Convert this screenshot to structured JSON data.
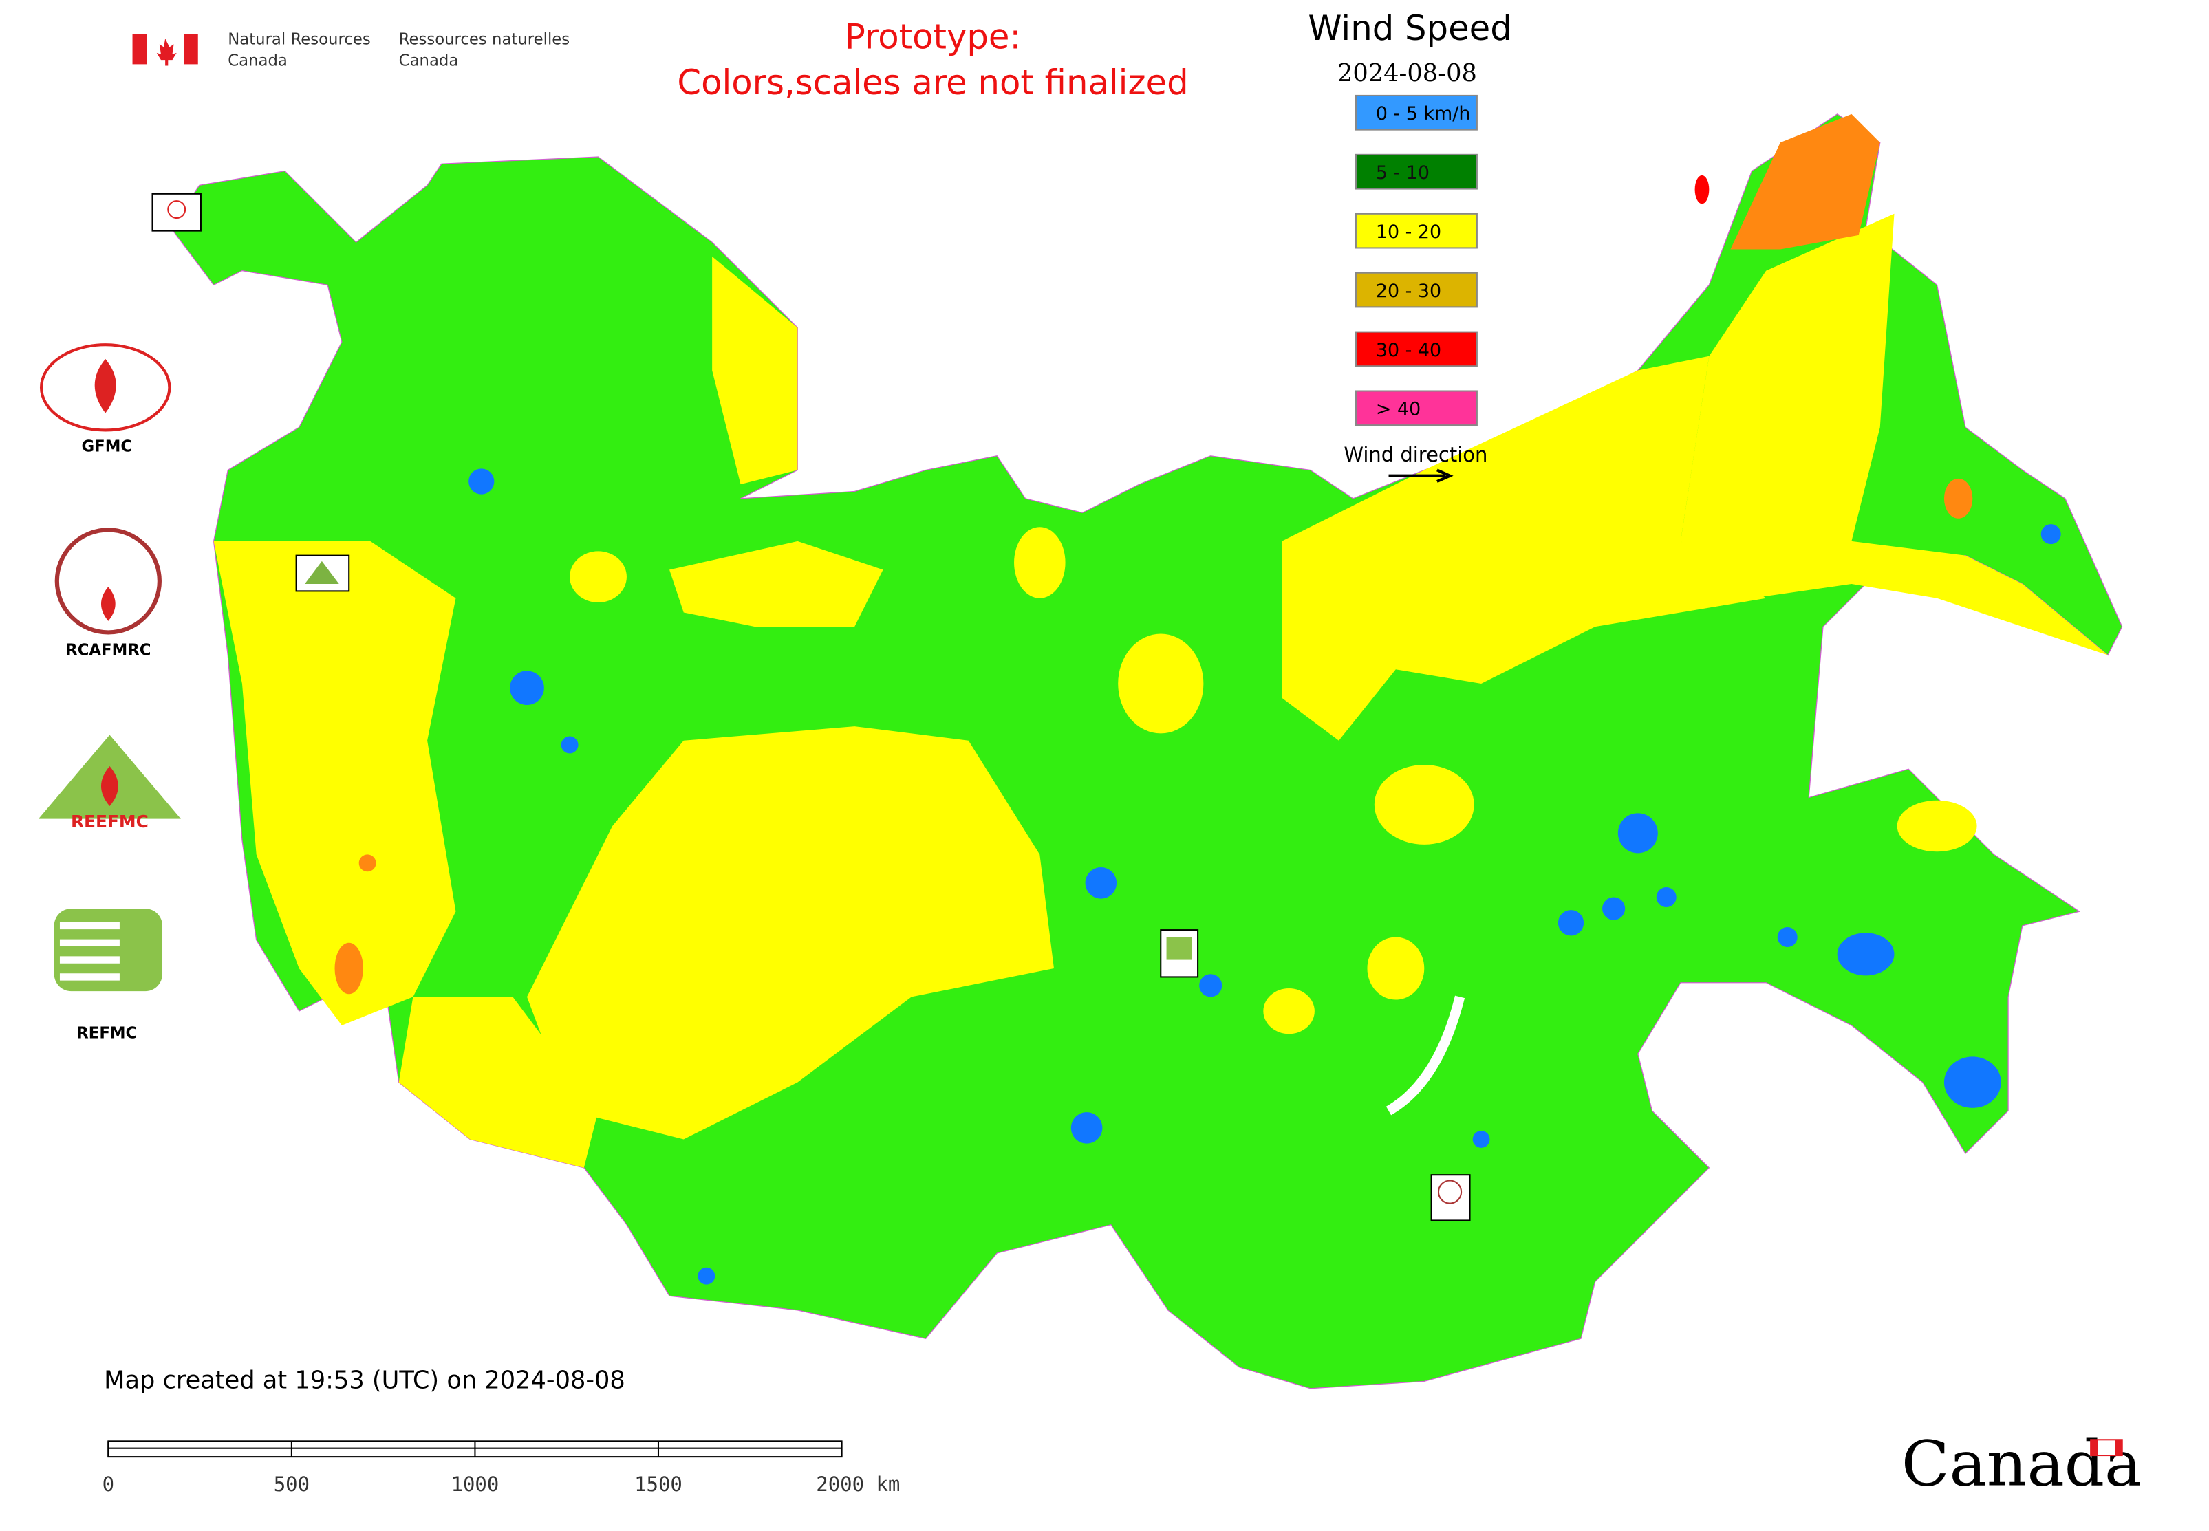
{
  "header": {
    "org_en_1": "Natural Resources",
    "org_en_2": "Canada",
    "org_fr_1": "Ressources naturelles",
    "org_fr_2": "Canada"
  },
  "notice": [
    "Prototype:",
    "Colors,scales are not finalized"
  ],
  "legend": {
    "title": "Wind Speed",
    "date": "2024-08-08",
    "items": [
      {
        "label": "0 - 5 km/h",
        "color": "#3399ff"
      },
      {
        "label": "5 - 10",
        "color": "#008000"
      },
      {
        "label": "10 - 20",
        "color": "#ffff00"
      },
      {
        "label": "20 - 30",
        "color": "#dcb400"
      },
      {
        "label": "30 - 40",
        "color": "#ff0000"
      },
      {
        "label": "> 40",
        "color": "#ff3399"
      }
    ],
    "wind_direction": "Wind direction"
  },
  "logos": [
    "GFMC",
    "RCAFMRC",
    "REEFMC",
    "REFMC"
  ],
  "footer": {
    "created": "Map created at 19:53 (UTC) on 2024-08-08",
    "scale_labels": [
      "0",
      "500",
      "1000",
      "1500",
      "2000 km"
    ],
    "wordmark": "Canada"
  }
}
